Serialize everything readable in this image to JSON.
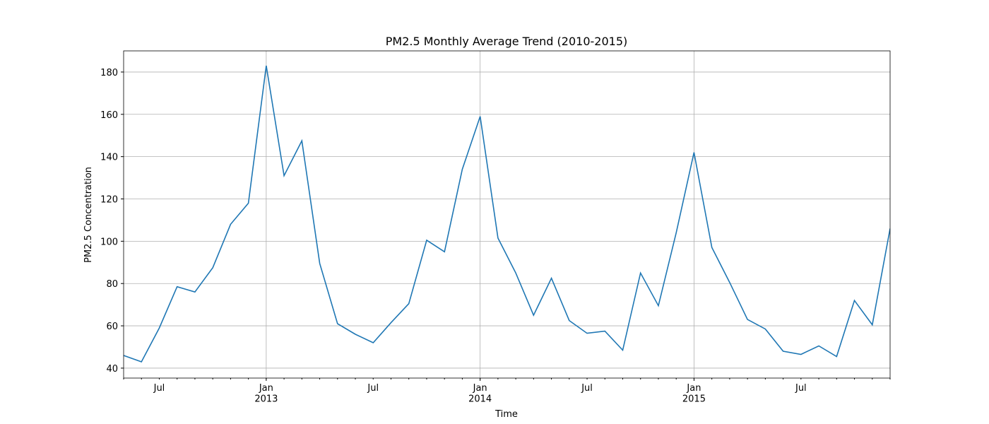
{
  "chart_data": {
    "type": "line",
    "title": "PM2.5 Monthly Average Trend (2010-2015)",
    "xlabel": "Time",
    "ylabel": "PM2.5 Concentration",
    "x": [
      "2012-05",
      "2012-06",
      "2012-07",
      "2012-08",
      "2012-09",
      "2012-10",
      "2012-11",
      "2012-12",
      "2013-01",
      "2013-02",
      "2013-03",
      "2013-04",
      "2013-05",
      "2013-06",
      "2013-07",
      "2013-08",
      "2013-09",
      "2013-10",
      "2013-11",
      "2013-12",
      "2014-01",
      "2014-02",
      "2014-03",
      "2014-04",
      "2014-05",
      "2014-06",
      "2014-07",
      "2014-08",
      "2014-09",
      "2014-10",
      "2014-11",
      "2014-12",
      "2015-01",
      "2015-02",
      "2015-03",
      "2015-04",
      "2015-05",
      "2015-06",
      "2015-07",
      "2015-08",
      "2015-09",
      "2015-10",
      "2015-11",
      "2015-12"
    ],
    "series": [
      {
        "name": "PM2.5",
        "color": "#1f77b4",
        "values": [
          46,
          43,
          59,
          78.5,
          76,
          87.5,
          108,
          118,
          183,
          131,
          147.5,
          89.5,
          61,
          56,
          52,
          61.5,
          70.5,
          100.5,
          95,
          134,
          159,
          101.5,
          85,
          65,
          82.5,
          62.5,
          56.5,
          57.5,
          48.5,
          85,
          69.5,
          104,
          142,
          97,
          80.5,
          63,
          58.5,
          48,
          46.5,
          50.5,
          45.5,
          72,
          60.5,
          106
        ]
      }
    ],
    "xlim": [
      "2012-05",
      "2015-12"
    ],
    "xticks": [
      {
        "value": "2013-01",
        "label": "Jan\n2013"
      },
      {
        "value": "2014-01",
        "label": "Jan\n2014"
      },
      {
        "value": "2015-01",
        "label": "Jan\n2015"
      }
    ],
    "xticks_minor": [
      {
        "value": "2012-07",
        "label": "Jul"
      },
      {
        "value": "2013-07",
        "label": "Jul"
      },
      {
        "value": "2014-07",
        "label": "Jul"
      },
      {
        "value": "2015-07",
        "label": "Jul"
      }
    ],
    "ylim": [
      35.3,
      190
    ],
    "yticks": [
      40,
      60,
      80,
      100,
      120,
      140,
      160,
      180
    ],
    "grid": true
  }
}
